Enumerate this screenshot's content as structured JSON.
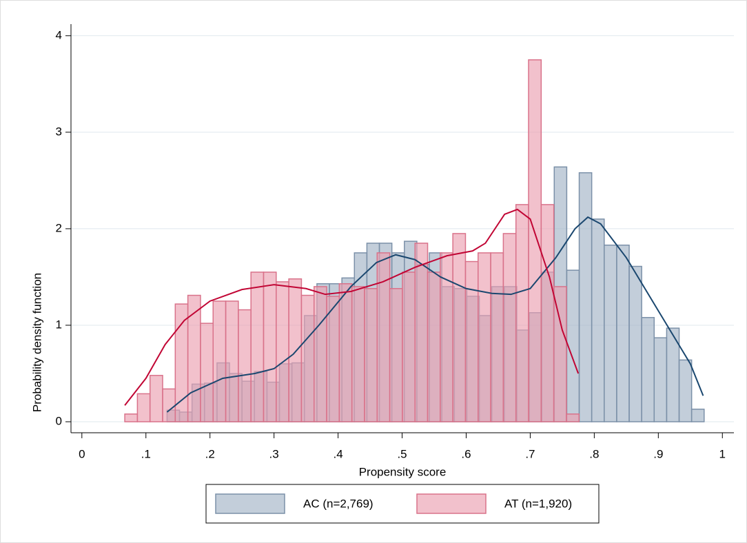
{
  "chart_data": {
    "type": "histogram",
    "x_label": "Propensity score",
    "y_label": "Probability density function",
    "xlim": [
      -0.017,
      1.018
    ],
    "ylim": [
      -0.114,
      4.12
    ],
    "xticks": [
      0,
      {
        "value": 0.1,
        "label": ".1"
      },
      {
        "value": 0.2,
        "label": ".2"
      },
      {
        "value": 0.3,
        "label": ".3"
      },
      {
        "value": 0.4,
        "label": ".4"
      },
      {
        "value": 0.5,
        "label": ".5"
      },
      {
        "value": 0.6,
        "label": ".6"
      },
      {
        "value": 0.7,
        "label": ".7"
      },
      {
        "value": 0.8,
        "label": ".8"
      },
      {
        "value": 0.9,
        "label": ".9"
      },
      1
    ],
    "yticks": [
      0,
      1,
      2,
      3,
      4
    ],
    "grid": true,
    "legend": "bottom",
    "series": [
      {
        "name": "AC (n=2,769)",
        "color": "#a3b4c6",
        "edge_color": "#7b90a8",
        "bins": [
          0.133,
          0.1525,
          0.172,
          0.1915,
          0.211,
          0.2305,
          0.25,
          0.2695,
          0.289,
          0.3085,
          0.328,
          0.3475,
          0.367,
          0.3865,
          0.406,
          0.4255,
          0.445,
          0.4645,
          0.484,
          0.5035,
          0.523,
          0.5425,
          0.562,
          0.5815,
          0.601,
          0.6205,
          0.64,
          0.6595,
          0.679,
          0.6985,
          0.718,
          0.7375,
          0.757,
          0.7765,
          0.796,
          0.8155,
          0.835,
          0.8545,
          0.874,
          0.8935,
          0.913,
          0.9325,
          0.952,
          0.9715
        ],
        "values": [
          0.12,
          0.1,
          0.39,
          0.4,
          0.61,
          0.5,
          0.42,
          0.52,
          0.41,
          0.6,
          0.61,
          1.1,
          1.43,
          1.43,
          1.49,
          1.75,
          1.85,
          1.85,
          1.75,
          1.87,
          1.63,
          1.75,
          1.4,
          1.38,
          1.3,
          1.1,
          1.4,
          1.4,
          0.95,
          1.13,
          1.55,
          2.64,
          1.57,
          2.58,
          2.1,
          1.83,
          1.83,
          1.61,
          1.08,
          0.87,
          0.97,
          0.64,
          0.13
        ]
      },
      {
        "name": "AT (n=1,920)",
        "color": "#eb9fb0",
        "edge_color": "#d9728a",
        "bins": [
          0.067,
          0.0867,
          0.1064,
          0.1261,
          0.1458,
          0.1655,
          0.1852,
          0.2049,
          0.2246,
          0.2443,
          0.264,
          0.2837,
          0.3034,
          0.3231,
          0.3428,
          0.3625,
          0.3822,
          0.4019,
          0.4216,
          0.4413,
          0.461,
          0.4807,
          0.5004,
          0.5201,
          0.5398,
          0.5595,
          0.5792,
          0.5989,
          0.6186,
          0.6383,
          0.658,
          0.6777,
          0.6974,
          0.7171,
          0.7368,
          0.7565,
          0.7762
        ],
        "values": [
          0.08,
          0.29,
          0.48,
          0.34,
          1.22,
          1.31,
          1.02,
          1.25,
          1.25,
          1.16,
          1.55,
          1.55,
          1.45,
          1.48,
          1.31,
          1.4,
          1.3,
          1.43,
          1.4,
          1.38,
          1.75,
          1.38,
          1.55,
          1.85,
          1.55,
          1.75,
          1.95,
          1.66,
          1.75,
          1.75,
          1.95,
          2.25,
          3.75,
          2.25,
          1.4,
          0.08
        ]
      }
    ],
    "lines": [
      {
        "color": "#1a476f",
        "x": [
          0.133,
          0.17,
          0.22,
          0.27,
          0.3,
          0.33,
          0.37,
          0.42,
          0.46,
          0.49,
          0.52,
          0.56,
          0.6,
          0.64,
          0.67,
          0.7,
          0.74,
          0.77,
          0.79,
          0.81,
          0.85,
          0.9,
          0.95,
          0.97
        ],
        "y": [
          0.1,
          0.3,
          0.45,
          0.5,
          0.55,
          0.7,
          1.0,
          1.4,
          1.65,
          1.73,
          1.68,
          1.5,
          1.38,
          1.33,
          1.32,
          1.38,
          1.7,
          2.0,
          2.12,
          2.05,
          1.7,
          1.15,
          0.6,
          0.27
        ]
      },
      {
        "color": "#c10534",
        "x": [
          0.067,
          0.1,
          0.13,
          0.16,
          0.2,
          0.25,
          0.3,
          0.35,
          0.38,
          0.42,
          0.47,
          0.52,
          0.57,
          0.61,
          0.63,
          0.66,
          0.68,
          0.7,
          0.73,
          0.75,
          0.775
        ],
        "y": [
          0.17,
          0.45,
          0.8,
          1.05,
          1.25,
          1.37,
          1.42,
          1.38,
          1.32,
          1.35,
          1.45,
          1.6,
          1.72,
          1.77,
          1.85,
          2.15,
          2.2,
          2.1,
          1.5,
          0.95,
          0.5
        ]
      }
    ]
  }
}
